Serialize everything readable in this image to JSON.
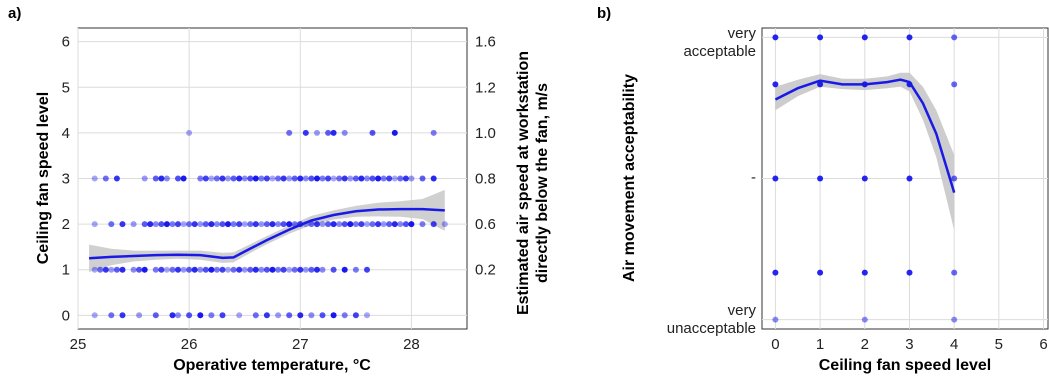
{
  "chart_data": [
    {
      "panel": "a)",
      "type": "scatter",
      "xlabel": "Operative temperature, °C",
      "ylabel": "Ceiling fan speed level",
      "y2label_line1": "Estimated air speed at workstation",
      "y2label_line2": "directly below the fan, m/s",
      "xlim": [
        25,
        28.5
      ],
      "ylim": [
        -0.3,
        6.3
      ],
      "xticks": [
        "25",
        "26",
        "27",
        "28"
      ],
      "yticks": [
        "0",
        "1",
        "2",
        "3",
        "4",
        "5",
        "6"
      ],
      "y2ticks": [
        {
          "label": "1.6",
          "y": 6
        },
        {
          "label": "1.2",
          "y": 5
        },
        {
          "label": "1.0",
          "y": 4
        },
        {
          "label": "0.8",
          "y": 3
        },
        {
          "label": "0.6",
          "y": 2
        },
        {
          "label": "0.2",
          "y": 1
        }
      ],
      "grid": true,
      "point_color": "#0000ee",
      "line_color": "#1a1ae6",
      "band_color": "#c8c8c8",
      "points": [
        {
          "y": 0,
          "x": [
            25.15,
            25.3,
            25.4,
            25.55,
            25.7,
            25.85,
            25.9,
            26.0,
            26.1,
            26.2,
            26.3,
            26.45,
            26.6,
            26.7,
            26.8,
            26.9,
            27.0,
            27.1,
            27.2,
            27.3,
            27.4,
            27.5,
            27.6
          ]
        },
        {
          "y": 1,
          "x": [
            25.15,
            25.2,
            25.25,
            25.3,
            25.35,
            25.4,
            25.5,
            25.55,
            25.6,
            25.7,
            25.75,
            25.8,
            25.85,
            25.9,
            25.95,
            26.0,
            26.05,
            26.1,
            26.15,
            26.2,
            26.25,
            26.3,
            26.35,
            26.4,
            26.45,
            26.5,
            26.55,
            26.6,
            26.65,
            26.7,
            26.75,
            26.8,
            26.85,
            26.9,
            26.95,
            27.0,
            27.05,
            27.1,
            27.15,
            27.2,
            27.3,
            27.4,
            27.5,
            27.6
          ]
        },
        {
          "y": 2,
          "x": [
            25.15,
            25.3,
            25.4,
            25.5,
            25.6,
            25.65,
            25.7,
            25.75,
            25.8,
            25.85,
            25.9,
            25.95,
            26.0,
            26.05,
            26.1,
            26.15,
            26.2,
            26.25,
            26.3,
            26.35,
            26.4,
            26.45,
            26.5,
            26.55,
            26.6,
            26.65,
            26.7,
            26.75,
            26.8,
            26.85,
            26.9,
            26.95,
            27.0,
            27.05,
            27.1,
            27.15,
            27.2,
            27.25,
            27.3,
            27.35,
            27.4,
            27.45,
            27.5,
            27.55,
            27.6,
            27.65,
            27.7,
            27.75,
            27.8,
            27.85,
            27.9,
            27.95,
            28.0,
            28.1,
            28.2,
            28.3
          ]
        },
        {
          "y": 3,
          "x": [
            25.15,
            25.25,
            25.35,
            25.6,
            25.7,
            25.75,
            25.8,
            25.9,
            25.95,
            26.1,
            26.15,
            26.2,
            26.25,
            26.3,
            26.35,
            26.4,
            26.45,
            26.5,
            26.55,
            26.6,
            26.65,
            26.7,
            26.75,
            26.8,
            26.85,
            26.9,
            26.95,
            27.0,
            27.05,
            27.1,
            27.15,
            27.2,
            27.25,
            27.3,
            27.35,
            27.4,
            27.45,
            27.5,
            27.55,
            27.6,
            27.65,
            27.7,
            27.75,
            27.8,
            27.85,
            27.9,
            27.95,
            28.0,
            28.1,
            28.2
          ]
        },
        {
          "y": 4,
          "x": [
            26.0,
            26.9,
            27.05,
            27.15,
            27.25,
            27.3,
            27.4,
            27.65,
            27.85,
            28.2
          ]
        }
      ],
      "smooth": {
        "x": [
          25.1,
          25.3,
          25.5,
          25.7,
          25.9,
          26.1,
          26.3,
          26.4,
          26.5,
          26.7,
          26.9,
          27.1,
          27.3,
          27.5,
          27.7,
          27.9,
          28.1,
          28.3
        ],
        "y": [
          1.25,
          1.28,
          1.3,
          1.32,
          1.33,
          1.32,
          1.26,
          1.27,
          1.4,
          1.65,
          1.88,
          2.08,
          2.2,
          2.28,
          2.32,
          2.33,
          2.33,
          2.3
        ],
        "lo": [
          0.95,
          1.1,
          1.18,
          1.22,
          1.24,
          1.22,
          1.15,
          1.16,
          1.3,
          1.56,
          1.79,
          1.98,
          2.1,
          2.16,
          2.17,
          2.16,
          2.11,
          1.85
        ],
        "hi": [
          1.55,
          1.46,
          1.42,
          1.42,
          1.42,
          1.42,
          1.37,
          1.38,
          1.5,
          1.74,
          1.97,
          2.18,
          2.3,
          2.4,
          2.47,
          2.5,
          2.55,
          2.75
        ]
      }
    },
    {
      "panel": "b)",
      "type": "scatter",
      "xlabel": "Ceiling fan speed level",
      "ylabel": "Air movement acceptability",
      "xlim": [
        -0.3,
        6.1
      ],
      "ylim": [
        -3.2,
        3.2
      ],
      "xticks": [
        "0",
        "1",
        "2",
        "3",
        "4",
        "5",
        "6"
      ],
      "ytick_top_line1": "very",
      "ytick_top_line2": "acceptable",
      "ytick_bottom_line1": "very",
      "ytick_bottom_line2": "unacceptable",
      "ytick_mid": "-",
      "grid": true,
      "point_color": "#0000ee",
      "line_color": "#1a1ae6",
      "band_color": "#c8c8c8",
      "points": [
        {
          "x": 0,
          "y": [
            3,
            2,
            0,
            -2,
            -3
          ]
        },
        {
          "x": 1,
          "y": [
            3,
            2,
            0,
            -2
          ]
        },
        {
          "x": 2,
          "y": [
            3,
            2,
            0,
            -2,
            -3
          ]
        },
        {
          "x": 3,
          "y": [
            3,
            2,
            0,
            -2
          ]
        },
        {
          "x": 4,
          "y": [
            3,
            2,
            0,
            -2,
            -3
          ]
        }
      ],
      "smooth": {
        "x": [
          0,
          0.5,
          1,
          1.5,
          2,
          2.5,
          2.8,
          3,
          3.3,
          3.6,
          4
        ],
        "y": [
          1.68,
          1.92,
          2.08,
          2.0,
          2.0,
          2.05,
          2.1,
          2.05,
          1.6,
          0.95,
          -0.3
        ],
        "lo": [
          1.45,
          1.75,
          1.95,
          1.9,
          1.88,
          1.92,
          1.95,
          1.85,
          1.25,
          0.45,
          -1.1
        ],
        "hi": [
          1.95,
          2.1,
          2.22,
          2.12,
          2.12,
          2.17,
          2.25,
          2.25,
          1.95,
          1.45,
          0.5
        ]
      }
    }
  ]
}
